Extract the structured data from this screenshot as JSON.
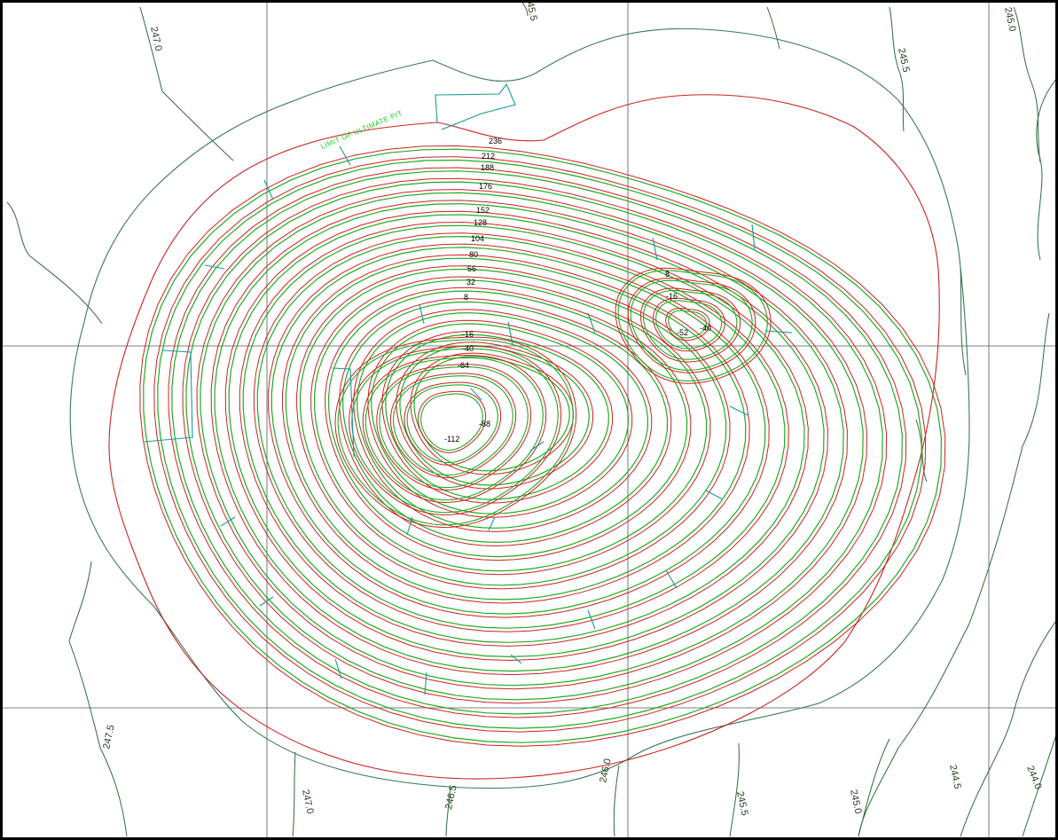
{
  "colors": {
    "frame": "#000000",
    "grid": "#555555",
    "terrain_contour": "#2e6b3a",
    "outer_boundary": "#3a7a5a",
    "pit_crest_red": "#cc2222",
    "pit_bench_green": "#22aa22",
    "ramp_cyan": "#1a9999"
  },
  "pit": {
    "limit_label": "LIMIT OF ULTIMATE PIT",
    "bench_labels": [
      "236",
      "212",
      "188",
      "176",
      "152",
      "128",
      "104",
      "80",
      "56",
      "32",
      "8",
      "-16",
      "-40",
      "-64",
      "-88",
      "-112"
    ],
    "east_pit_labels": [
      "8",
      "-16",
      "-40",
      "-52"
    ]
  },
  "terrain": {
    "contour_labels": [
      "247.0",
      "245.5",
      "245.0",
      "245.5",
      "247.5",
      "247.0",
      "246.5",
      "246.0",
      "245.5",
      "245.0",
      "244.5",
      "244.0"
    ]
  },
  "icons": {
    "frame": "map-border",
    "pit": "open-pit-contours"
  }
}
